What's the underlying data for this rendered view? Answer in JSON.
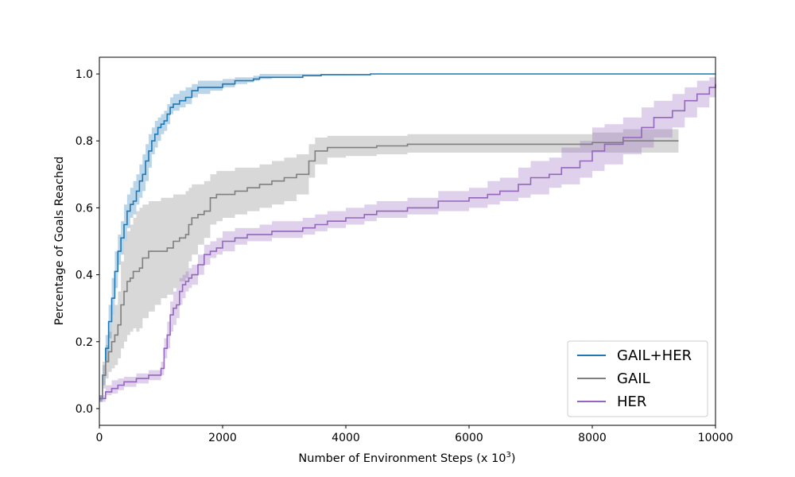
{
  "chart_data": {
    "type": "line",
    "title": "",
    "xlabel": "Number of Environment Steps (x 10",
    "xlabel_exponent": "3",
    "xlabel_suffix": ")",
    "ylabel": "Percentage of Goals Reached",
    "xlim": [
      0,
      10000
    ],
    "ylim": [
      -0.05,
      1.05
    ],
    "xticks": [
      0,
      2000,
      4000,
      6000,
      8000,
      10000
    ],
    "xtick_labels": [
      "0",
      "2000",
      "4000",
      "6000",
      "8000",
      "10000"
    ],
    "yticks": [
      0.0,
      0.2,
      0.4,
      0.6,
      0.8,
      1.0
    ],
    "ytick_labels": [
      "0.0",
      "0.2",
      "0.4",
      "0.6",
      "0.8",
      "1.0"
    ],
    "grid": false,
    "legend_position": "lower-right",
    "series": [
      {
        "name": "GAIL+HER",
        "color": "#1f77b4",
        "band_color": "#1f77b4",
        "x": [
          0,
          50,
          100,
          150,
          200,
          250,
          300,
          350,
          400,
          450,
          500,
          550,
          600,
          650,
          700,
          750,
          800,
          850,
          900,
          950,
          1000,
          1050,
          1100,
          1150,
          1200,
          1300,
          1400,
          1500,
          1600,
          1700,
          1800,
          1900,
          2000,
          2100,
          2200,
          2300,
          2400,
          2500,
          2600,
          2700,
          2800,
          3000,
          3300,
          3600,
          4000,
          4400,
          4500,
          5000,
          6000,
          7000,
          8000,
          9000,
          10000
        ],
        "y": [
          0.03,
          0.1,
          0.18,
          0.26,
          0.33,
          0.41,
          0.47,
          0.51,
          0.55,
          0.59,
          0.61,
          0.62,
          0.65,
          0.68,
          0.7,
          0.74,
          0.77,
          0.8,
          0.82,
          0.84,
          0.85,
          0.86,
          0.88,
          0.9,
          0.91,
          0.92,
          0.93,
          0.95,
          0.96,
          0.96,
          0.96,
          0.96,
          0.97,
          0.97,
          0.98,
          0.98,
          0.98,
          0.985,
          0.99,
          0.99,
          0.99,
          0.99,
          0.995,
          0.998,
          0.998,
          1.0,
          1.0,
          1.0,
          1.0,
          1.0,
          1.0,
          1.0,
          1.0
        ],
        "lower": [
          0.02,
          0.07,
          0.14,
          0.21,
          0.28,
          0.36,
          0.43,
          0.46,
          0.5,
          0.54,
          0.57,
          0.58,
          0.61,
          0.63,
          0.65,
          0.68,
          0.72,
          0.76,
          0.78,
          0.8,
          0.82,
          0.83,
          0.85,
          0.88,
          0.89,
          0.9,
          0.91,
          0.93,
          0.94,
          0.94,
          0.95,
          0.95,
          0.96,
          0.96,
          0.97,
          0.97,
          0.975,
          0.98,
          0.985,
          0.985,
          0.99,
          0.99,
          0.993,
          0.996,
          0.997,
          0.999,
          1.0,
          1.0,
          1.0,
          1.0,
          1.0,
          1.0,
          1.0
        ],
        "upper": [
          0.04,
          0.13,
          0.22,
          0.31,
          0.39,
          0.47,
          0.52,
          0.56,
          0.61,
          0.64,
          0.66,
          0.68,
          0.7,
          0.73,
          0.76,
          0.79,
          0.82,
          0.84,
          0.86,
          0.87,
          0.88,
          0.89,
          0.91,
          0.93,
          0.94,
          0.95,
          0.96,
          0.97,
          0.98,
          0.98,
          0.98,
          0.98,
          0.985,
          0.985,
          0.99,
          0.99,
          0.99,
          0.995,
          1.0,
          1.0,
          1.0,
          1.0,
          1.0,
          1.0,
          1.0,
          1.0,
          1.0,
          1.0,
          1.0,
          1.0,
          1.0,
          1.0,
          1.0
        ]
      },
      {
        "name": "GAIL",
        "color": "#7f7f7f",
        "band_color": "#7f7f7f",
        "x": [
          0,
          50,
          100,
          150,
          200,
          250,
          300,
          350,
          400,
          450,
          500,
          550,
          600,
          650,
          700,
          800,
          900,
          1000,
          1100,
          1200,
          1300,
          1400,
          1450,
          1500,
          1600,
          1700,
          1800,
          1900,
          2000,
          2200,
          2400,
          2600,
          2800,
          3000,
          3200,
          3400,
          3500,
          3700,
          4000,
          4500,
          5000,
          5500,
          6000,
          6500,
          7000,
          7500,
          8000,
          8500,
          9000,
          9400
        ],
        "y": [
          0.03,
          0.1,
          0.14,
          0.17,
          0.2,
          0.22,
          0.25,
          0.31,
          0.35,
          0.38,
          0.39,
          0.41,
          0.41,
          0.42,
          0.45,
          0.47,
          0.47,
          0.47,
          0.48,
          0.5,
          0.51,
          0.52,
          0.55,
          0.57,
          0.58,
          0.59,
          0.63,
          0.64,
          0.64,
          0.65,
          0.66,
          0.67,
          0.68,
          0.69,
          0.7,
          0.74,
          0.77,
          0.78,
          0.78,
          0.785,
          0.79,
          0.79,
          0.79,
          0.79,
          0.79,
          0.79,
          0.795,
          0.8,
          0.8,
          0.8
        ],
        "lower": [
          0.02,
          0.06,
          0.09,
          0.11,
          0.12,
          0.13,
          0.15,
          0.18,
          0.2,
          0.22,
          0.23,
          0.24,
          0.23,
          0.24,
          0.27,
          0.29,
          0.31,
          0.33,
          0.34,
          0.36,
          0.38,
          0.39,
          0.44,
          0.46,
          0.49,
          0.51,
          0.55,
          0.56,
          0.57,
          0.58,
          0.59,
          0.6,
          0.61,
          0.62,
          0.64,
          0.69,
          0.73,
          0.75,
          0.755,
          0.76,
          0.765,
          0.765,
          0.765,
          0.765,
          0.765,
          0.765,
          0.765,
          0.765,
          0.765,
          0.765
        ],
        "upper": [
          0.04,
          0.14,
          0.19,
          0.23,
          0.28,
          0.31,
          0.35,
          0.44,
          0.5,
          0.53,
          0.55,
          0.57,
          0.59,
          0.6,
          0.61,
          0.62,
          0.62,
          0.63,
          0.63,
          0.64,
          0.64,
          0.65,
          0.66,
          0.67,
          0.67,
          0.68,
          0.7,
          0.71,
          0.71,
          0.72,
          0.72,
          0.73,
          0.74,
          0.75,
          0.76,
          0.79,
          0.81,
          0.815,
          0.815,
          0.815,
          0.82,
          0.82,
          0.82,
          0.82,
          0.82,
          0.82,
          0.825,
          0.835,
          0.835,
          0.835
        ]
      },
      {
        "name": "HER",
        "color": "#9467bd",
        "band_color": "#9467bd",
        "x": [
          0,
          100,
          200,
          300,
          400,
          500,
          600,
          700,
          800,
          900,
          1000,
          1050,
          1100,
          1150,
          1200,
          1250,
          1300,
          1350,
          1400,
          1450,
          1500,
          1600,
          1700,
          1800,
          1900,
          2000,
          2200,
          2400,
          2600,
          2800,
          3000,
          3300,
          3500,
          3700,
          4000,
          4300,
          4500,
          5000,
          5500,
          6000,
          6300,
          6500,
          6800,
          7000,
          7300,
          7500,
          7800,
          8000,
          8200,
          8500,
          8800,
          9000,
          9300,
          9500,
          9700,
          9900,
          10000
        ],
        "y": [
          0.03,
          0.05,
          0.06,
          0.07,
          0.08,
          0.08,
          0.09,
          0.09,
          0.1,
          0.1,
          0.12,
          0.18,
          0.22,
          0.28,
          0.3,
          0.31,
          0.35,
          0.37,
          0.38,
          0.39,
          0.4,
          0.43,
          0.46,
          0.47,
          0.48,
          0.5,
          0.51,
          0.52,
          0.52,
          0.53,
          0.53,
          0.54,
          0.55,
          0.56,
          0.57,
          0.58,
          0.59,
          0.6,
          0.62,
          0.63,
          0.64,
          0.65,
          0.67,
          0.69,
          0.7,
          0.72,
          0.74,
          0.77,
          0.79,
          0.81,
          0.84,
          0.87,
          0.89,
          0.92,
          0.94,
          0.96,
          0.97
        ],
        "lower": [
          0.02,
          0.04,
          0.045,
          0.055,
          0.065,
          0.065,
          0.075,
          0.075,
          0.085,
          0.085,
          0.1,
          0.15,
          0.18,
          0.23,
          0.25,
          0.27,
          0.31,
          0.33,
          0.35,
          0.36,
          0.37,
          0.4,
          0.43,
          0.45,
          0.46,
          0.47,
          0.49,
          0.5,
          0.5,
          0.51,
          0.51,
          0.52,
          0.53,
          0.54,
          0.55,
          0.56,
          0.57,
          0.58,
          0.59,
          0.6,
          0.61,
          0.62,
          0.63,
          0.64,
          0.66,
          0.67,
          0.69,
          0.71,
          0.73,
          0.76,
          0.78,
          0.81,
          0.84,
          0.87,
          0.9,
          0.93,
          0.94
        ],
        "upper": [
          0.04,
          0.07,
          0.085,
          0.09,
          0.095,
          0.095,
          0.105,
          0.105,
          0.115,
          0.115,
          0.14,
          0.21,
          0.26,
          0.32,
          0.35,
          0.36,
          0.39,
          0.4,
          0.41,
          0.42,
          0.43,
          0.46,
          0.49,
          0.5,
          0.51,
          0.53,
          0.54,
          0.54,
          0.55,
          0.56,
          0.56,
          0.57,
          0.58,
          0.59,
          0.6,
          0.61,
          0.62,
          0.63,
          0.65,
          0.66,
          0.68,
          0.69,
          0.72,
          0.74,
          0.75,
          0.78,
          0.8,
          0.84,
          0.85,
          0.87,
          0.9,
          0.92,
          0.94,
          0.96,
          0.98,
          0.99,
          1.0
        ]
      }
    ]
  }
}
